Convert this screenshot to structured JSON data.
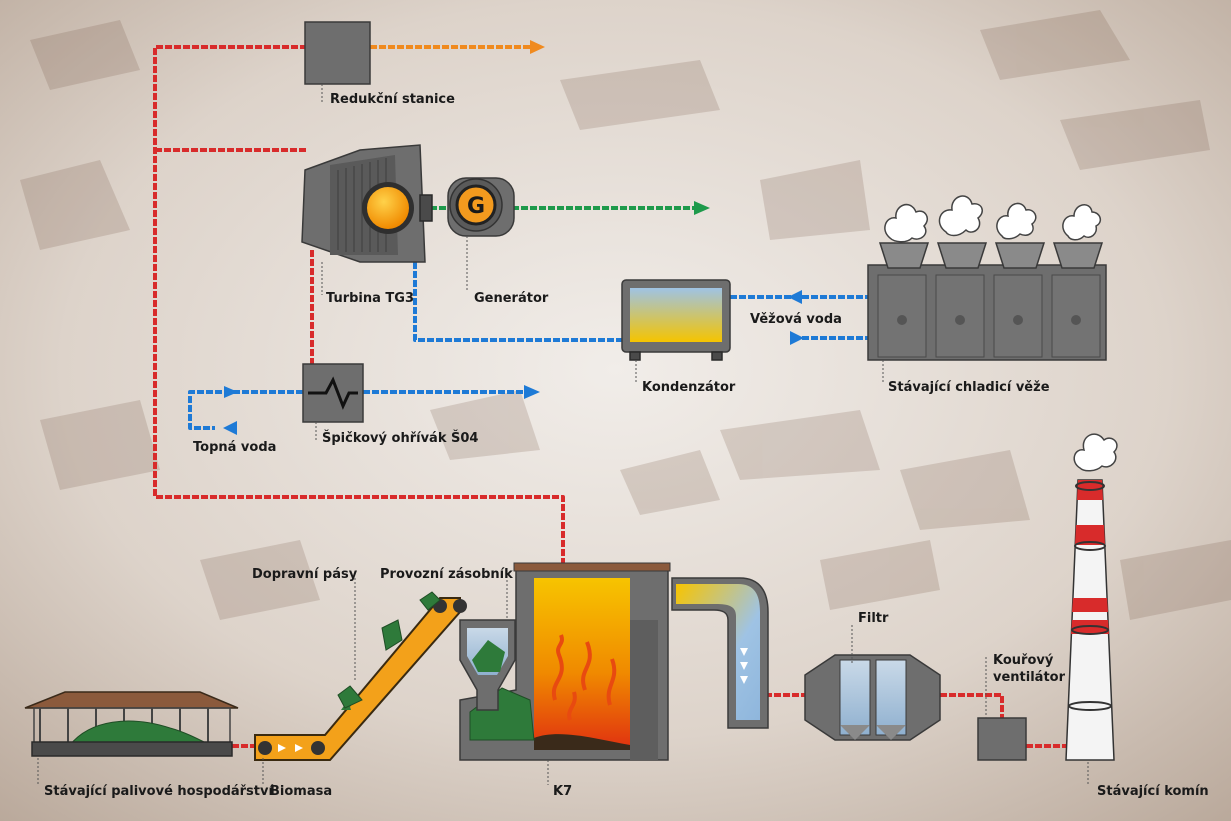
{
  "labels": {
    "reducing_station": "Redukční stanice",
    "turbine": "Turbina TG3",
    "generator": "Generátor",
    "generator_letter": "G",
    "condenser": "Kondenzátor",
    "tower_water": "Věžová voda",
    "cooling_towers": "Stávající chladicí věže",
    "peak_heater": "Špičkový ohřívák Š04",
    "heating_water": "Topná voda",
    "conveyor_belts": "Dopravní pásy",
    "service_bunker": "Provozní zásobník",
    "filter": "Filtr",
    "flue_fan": "Kouřový ventilátor",
    "fuel_yard": "Stávající palivové hospodářství",
    "biomass": "Biomasa",
    "boiler": "K7",
    "chimney": "Stávající komín"
  },
  "colors": {
    "steam": "#d82b2b",
    "water": "#1e7ad6",
    "electricity": "#1e9a4b",
    "reduced_steam": "#f08a1e",
    "flame": "#f7b500",
    "metal": "#6e6e6e"
  }
}
